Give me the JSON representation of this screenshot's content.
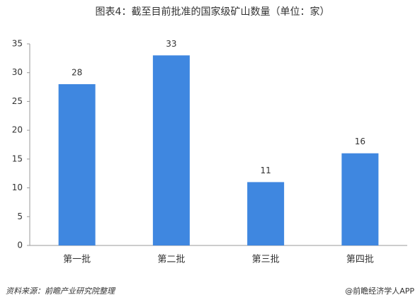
{
  "chart_data": {
    "type": "bar",
    "title": "图表4：截至目前批准的国家级矿山数量（单位：家）",
    "categories": [
      "第一批",
      "第二批",
      "第三批",
      "第四批"
    ],
    "values": [
      28,
      33,
      11,
      16
    ],
    "color": "#3f87e0",
    "ylim": [
      0,
      35
    ],
    "yticks": [
      0,
      5,
      10,
      15,
      20,
      25,
      30,
      35
    ],
    "grid": false,
    "source": "资料来源：前瞻产业研究院整理",
    "credit": "@前瞻经济学人APP"
  }
}
